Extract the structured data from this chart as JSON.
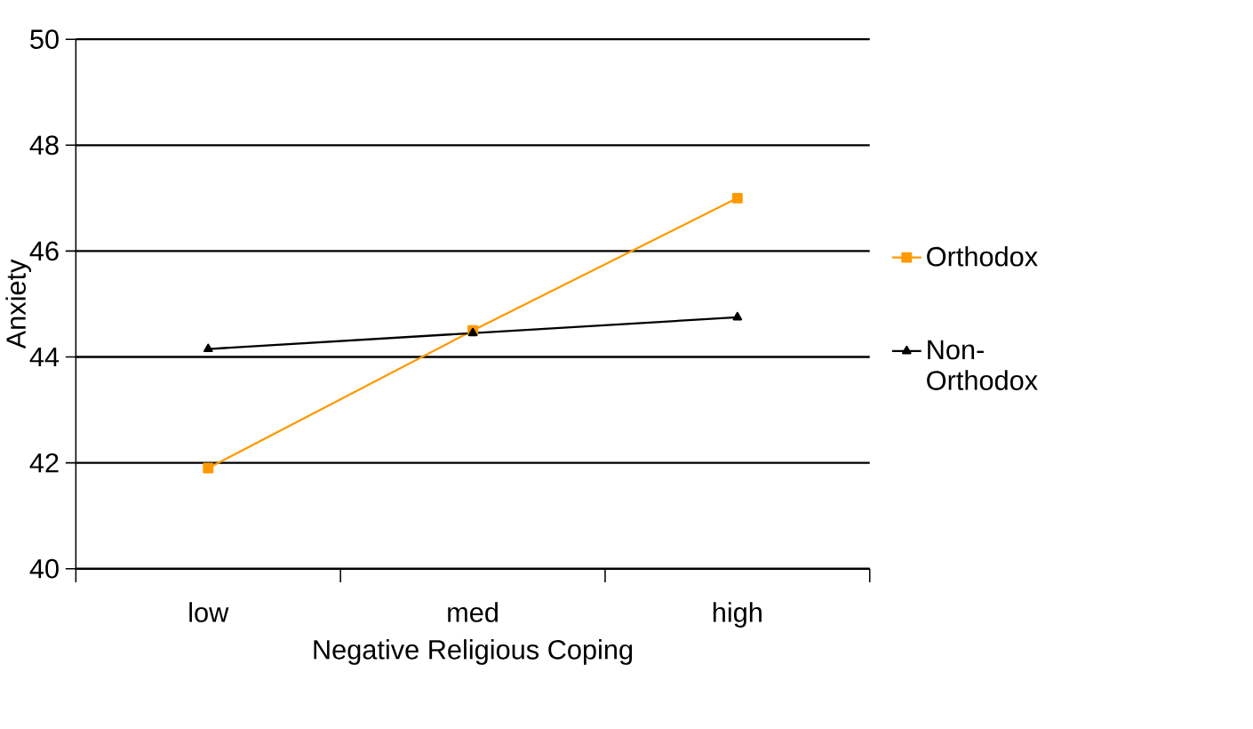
{
  "chart_data": {
    "type": "line",
    "xlabel": "Negative Religious Coping",
    "ylabel": "Anxiety",
    "categories": [
      "low",
      "med",
      "high"
    ],
    "series": [
      {
        "name": "Orthodox",
        "color": "#ff9900",
        "marker": "square",
        "values": [
          41.9,
          44.5,
          47.0
        ]
      },
      {
        "name": "Non-Orthodox",
        "color": "#000000",
        "marker": "triangle",
        "values": [
          44.15,
          44.45,
          44.75
        ]
      }
    ],
    "ylim": [
      40,
      50
    ],
    "yticks": [
      40,
      42,
      44,
      46,
      48,
      50
    ],
    "grid": "y",
    "legend": "right",
    "line_style": "solid"
  }
}
